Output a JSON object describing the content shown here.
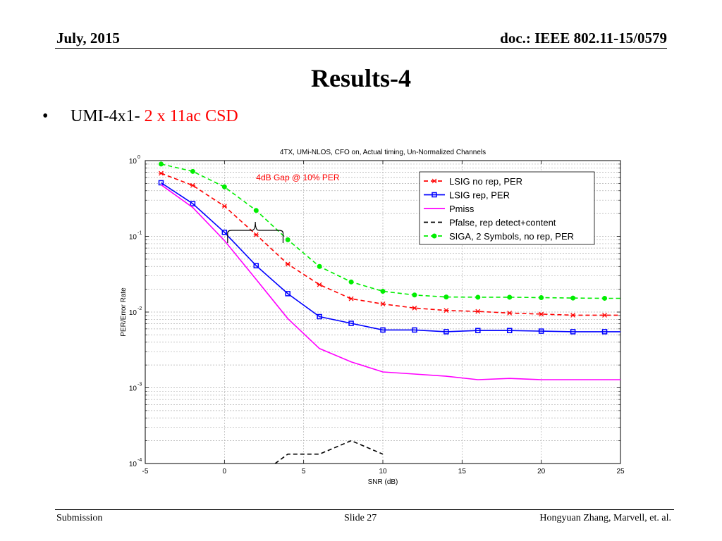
{
  "header": {
    "date": "July, 2015",
    "doc": "doc.: IEEE 802.11-15/0579"
  },
  "slide_title": "Results-4",
  "bullet": {
    "symbol": "•",
    "text": "UMI-4x1- ",
    "highlight": "2 x 11ac CSD",
    "highlight_color": "#ff0000"
  },
  "footer": {
    "left": "Submission",
    "center": "Slide 27",
    "right": "Hongyuan Zhang,  Marvell, et. al."
  },
  "chart_data": {
    "type": "line",
    "title": "4TX, UMi-NLOS, CFO on, Actual timing, Un-Normalized Channels",
    "xlabel": "SNR (dB)",
    "ylabel": "PER/Error Rate",
    "xlim": [
      -5,
      25
    ],
    "ylim": [
      0.0001,
      1
    ],
    "yscale": "log",
    "grid": true,
    "legend_position": "top-right",
    "xticks": [
      -5,
      0,
      5,
      10,
      15,
      20,
      25
    ],
    "xtick_labels": [
      "-5",
      "0",
      "5",
      "10",
      "15",
      "20",
      "25"
    ],
    "yticks": [
      0.0001,
      0.001,
      0.01,
      0.1,
      1
    ],
    "ytick_labels": [
      {
        "base": "10",
        "exp": "-4"
      },
      {
        "base": "10",
        "exp": "-3"
      },
      {
        "base": "10",
        "exp": "-2"
      },
      {
        "base": "10",
        "exp": "-1"
      },
      {
        "base": "10",
        "exp": "0"
      }
    ],
    "annotation": {
      "text": "4dB Gap  @ 10% PER",
      "color": "#ff0000",
      "brace_from_x": 0.2,
      "brace_to_x": 3.7,
      "brace_y": 0.12,
      "text_x": 2,
      "text_y": 0.55
    },
    "series": [
      {
        "name": "LSIG no rep, PER",
        "color": "#ff0000",
        "dash": "6,4",
        "marker": "star",
        "x": [
          -4,
          -2,
          0,
          2,
          4,
          6,
          8,
          10,
          12,
          14,
          16,
          18,
          20,
          22,
          24,
          25
        ],
        "y": [
          0.68,
          0.47,
          0.25,
          0.105,
          0.043,
          0.023,
          0.015,
          0.0128,
          0.0113,
          0.0105,
          0.0102,
          0.0097,
          0.0094,
          0.0091,
          0.0091,
          0.0091
        ]
      },
      {
        "name": "LSIG rep, PER",
        "color": "#0000ff",
        "dash": "",
        "marker": "square",
        "x": [
          -4,
          -2,
          0,
          2,
          4,
          6,
          8,
          10,
          12,
          14,
          16,
          18,
          20,
          22,
          24,
          25
        ],
        "y": [
          0.51,
          0.27,
          0.113,
          0.041,
          0.0175,
          0.0087,
          0.0071,
          0.0058,
          0.0058,
          0.0055,
          0.0057,
          0.0057,
          0.0056,
          0.0055,
          0.0055,
          0.0055
        ]
      },
      {
        "name": "Pmiss",
        "color": "#ff00ff",
        "dash": "",
        "marker": "none",
        "x": [
          -4,
          -2,
          0,
          2,
          4,
          6,
          8,
          10,
          12,
          14,
          16,
          18,
          20,
          22,
          24,
          25
        ],
        "y": [
          0.48,
          0.24,
          0.088,
          0.027,
          0.0082,
          0.0033,
          0.0022,
          0.00162,
          0.00152,
          0.00142,
          0.00128,
          0.00133,
          0.00128,
          0.00128,
          0.00128,
          0.00128
        ]
      },
      {
        "name": "Pfalse, rep detect+content",
        "color": "#000000",
        "dash": "6,4",
        "marker": "none",
        "x": [
          3.2,
          4,
          6,
          8,
          10
        ],
        "y": [
          0.0001,
          0.000133,
          0.000133,
          0.0002,
          0.000133
        ]
      },
      {
        "name": "SIGA, 2 Symbols, no rep, PER",
        "color": "#00ee00",
        "dash": "6,4",
        "marker": "diamond",
        "x": [
          -4,
          -2,
          0,
          2,
          4,
          6,
          8,
          10,
          12,
          14,
          16,
          18,
          20,
          22,
          24,
          25
        ],
        "y": [
          0.9,
          0.72,
          0.45,
          0.22,
          0.09,
          0.04,
          0.025,
          0.0188,
          0.0168,
          0.0158,
          0.0157,
          0.0157,
          0.0155,
          0.0153,
          0.0152,
          0.0152
        ]
      }
    ]
  }
}
